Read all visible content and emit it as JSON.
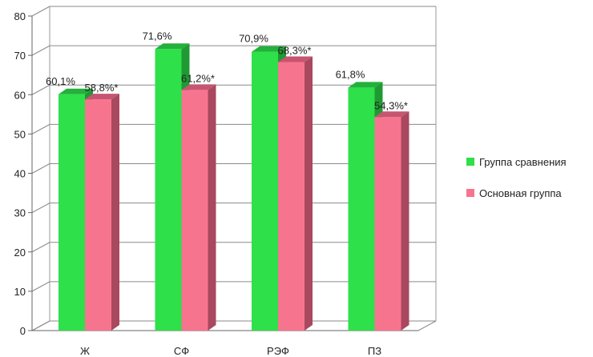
{
  "chart_data": {
    "type": "bar",
    "categories": [
      "Ж",
      "СФ",
      "РЭФ",
      "ПЗ"
    ],
    "series": [
      {
        "name": "Группа сравнения",
        "values": [
          60.1,
          71.6,
          70.9,
          61.8
        ],
        "labels": [
          "60,1%",
          "71,6%",
          "70,9%",
          "61,8%"
        ]
      },
      {
        "name": "Основная группа",
        "values": [
          58.8,
          61.2,
          68.3,
          54.3
        ],
        "labels": [
          "58,8%*",
          "61,2%*",
          "68,3%*",
          "54,3%*"
        ]
      }
    ],
    "ylim": [
      0,
      80
    ],
    "yticks": [
      "0",
      "10",
      "20",
      "30",
      "40",
      "50",
      "60",
      "70",
      "80"
    ],
    "grid": true,
    "legend_position": "right",
    "colors": {
      "series": [
        "#2ee04a",
        "#f7748f"
      ],
      "series_side": [
        "#1f9a33",
        "#a9485e"
      ],
      "series_top": [
        "#22b13a",
        "#c55570"
      ]
    }
  }
}
